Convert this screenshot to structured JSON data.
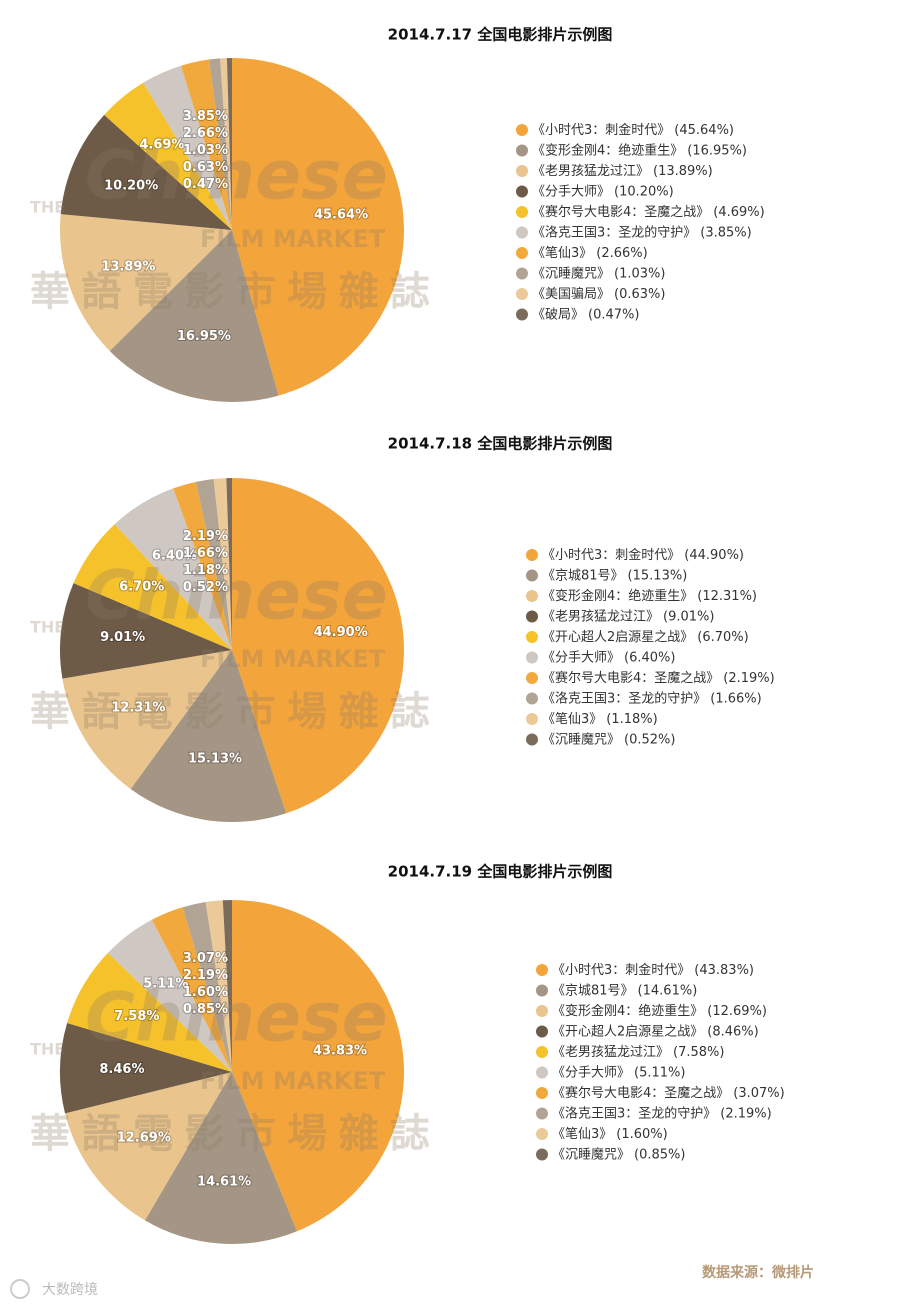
{
  "chart_data": [
    {
      "type": "pie",
      "title": "2014.7.17  全国电影排片示例图",
      "categories": [
        "《小时代3：刺金时代》",
        "《变形金刚4：绝迹重生》",
        "《老男孩猛龙过江》",
        "《分手大师》",
        "《赛尔号大电影4：圣魔之战》",
        "《洛克王国3：圣龙的守护》",
        "《笔仙3》",
        "《沉睡魔咒》",
        "《美国骗局》",
        "《破局》"
      ],
      "values": [
        45.64,
        16.95,
        13.89,
        10.2,
        4.69,
        3.85,
        2.66,
        1.03,
        0.63,
        0.47
      ],
      "value_labels": [
        "45.64%",
        "16.95%",
        "13.89%",
        "10.20%",
        "4.69%",
        "3.85%",
        "2.66%",
        "1.03%",
        "0.63%",
        "0.47%"
      ],
      "legend_value_labels": [
        "(45.64%)",
        "(16.95%)",
        "(13.89%)",
        "(10.20%)",
        "(4.69%)",
        "(3.85%)",
        "(2.66%)",
        "(1.03%)",
        "(0.63%)",
        "(0.47%)"
      ],
      "colors": [
        "#f3a53b",
        "#a59584",
        "#e9c48c",
        "#6d5a47",
        "#f6c22c",
        "#cfc7c1",
        "#f1a83c",
        "#b2a494",
        "#ebc999",
        "#7b6b5b"
      ]
    },
    {
      "type": "pie",
      "title": "2014.7.18 全国电影排片示例图",
      "categories": [
        "《小时代3：刺金时代》",
        "《京城81号》",
        "《变形金刚4：绝迹重生》",
        "《老男孩猛龙过江》",
        "《开心超人2启源星之战》",
        "《分手大师》",
        "《赛尔号大电影4：圣魔之战》",
        "《洛克王国3：圣龙的守护》",
        "《笔仙3》",
        "《沉睡魔咒》"
      ],
      "values": [
        44.9,
        15.13,
        12.31,
        9.01,
        6.7,
        6.4,
        2.19,
        1.66,
        1.18,
        0.52
      ],
      "value_labels": [
        "44.90%",
        "15.13%",
        "12.31%",
        "9.01%",
        "6.70%",
        "6.40%",
        "2.19%",
        "1.66%",
        "1.18%",
        "0.52%"
      ],
      "legend_value_labels": [
        "(44.90%)",
        "(15.13%)",
        "(12.31%)",
        "(9.01%)",
        "(6.70%)",
        "(6.40%)",
        "(2.19%)",
        "(1.66%)",
        "(1.18%)",
        "(0.52%)"
      ],
      "colors": [
        "#f3a53b",
        "#a59584",
        "#e9c48c",
        "#6d5a47",
        "#f6c22c",
        "#cfc7c1",
        "#f1a83c",
        "#b2a494",
        "#ebc999",
        "#7b6b5b"
      ]
    },
    {
      "type": "pie",
      "title": "2014.7.19 全国电影排片示例图",
      "categories": [
        "《小时代3：刺金时代》",
        "《京城81号》",
        "《变形金刚4：绝迹重生》",
        "《开心超人2启源星之战》",
        "《老男孩猛龙过江》",
        "《分手大师》",
        "《赛尔号大电影4：圣魔之战》",
        "《洛克王国3：圣龙的守护》",
        "《笔仙3》",
        "《沉睡魔咒》"
      ],
      "values": [
        43.83,
        14.61,
        12.69,
        8.46,
        7.58,
        5.11,
        3.07,
        2.19,
        1.6,
        0.85
      ],
      "value_labels": [
        "43.83%",
        "14.61%",
        "12.69%",
        "8.46%",
        "7.58%",
        "5.11%",
        "3.07%",
        "2.19%",
        "1.60%",
        "0.85%"
      ],
      "legend_value_labels": [
        "(43.83%)",
        "(14.61%)",
        "(12.69%)",
        "(8.46%)",
        "(7.58%)",
        "(5.11%)",
        "(3.07%)",
        "(2.19%)",
        "(1.60%)",
        "(0.85%)"
      ],
      "colors": [
        "#f3a53b",
        "#a59584",
        "#e9c48c",
        "#6d5a47",
        "#f6c22c",
        "#cfc7c1",
        "#f1a83c",
        "#b2a494",
        "#ebc999",
        "#7b6b5b"
      ]
    }
  ],
  "watermark": [
    "THE",
    "Chinese",
    "FILM MARKET",
    "華語電影市場雜誌"
  ],
  "source": "数据来源：微排片",
  "logo_text": "大数跨境"
}
